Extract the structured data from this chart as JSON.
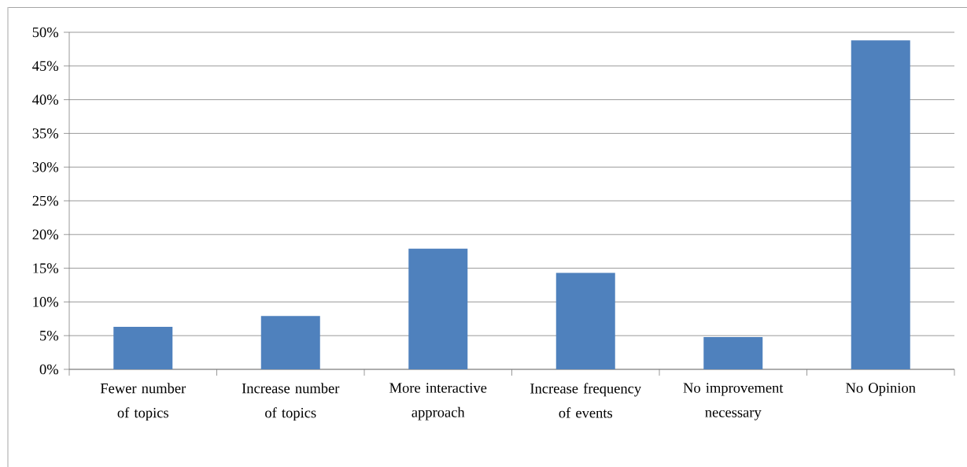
{
  "chart_data": {
    "type": "bar",
    "categories": [
      "Fewer number of topics",
      "Increase number of topics",
      "More interactive approach",
      "Increase frequency of events",
      "No improvement necessary",
      "No Opinion"
    ],
    "values": [
      6.3,
      7.9,
      17.9,
      14.3,
      4.8,
      48.8
    ],
    "color": "#4f81bd",
    "ylim": [
      0,
      50
    ],
    "yticks": [
      {
        "value": 0,
        "label": "0%"
      },
      {
        "value": 5,
        "label": "5%"
      },
      {
        "value": 10,
        "label": "10%"
      },
      {
        "value": 15,
        "label": "15%"
      },
      {
        "value": 20,
        "label": "20%"
      },
      {
        "value": 25,
        "label": "25%"
      },
      {
        "value": 30,
        "label": "30%"
      },
      {
        "value": 35,
        "label": "35%"
      },
      {
        "value": 40,
        "label": "40%"
      },
      {
        "value": 45,
        "label": "45%"
      },
      {
        "value": 50,
        "label": "50%"
      }
    ],
    "grid": "y"
  }
}
